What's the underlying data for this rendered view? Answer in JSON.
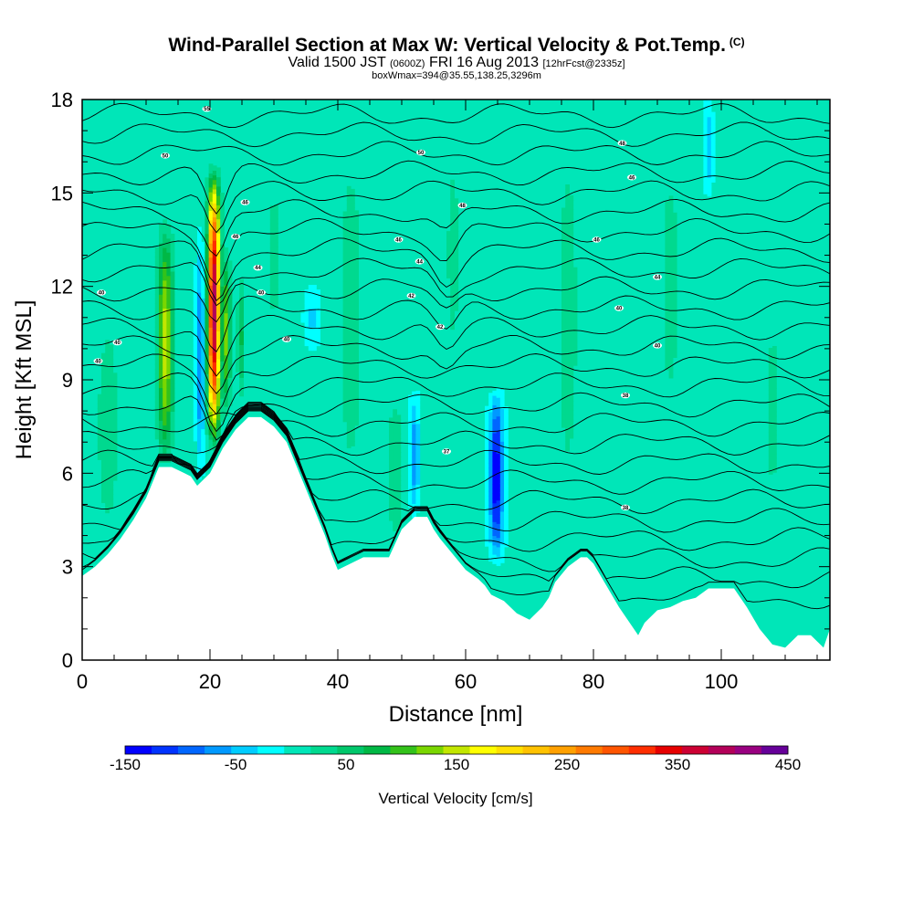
{
  "header": {
    "title": "Wind-Parallel Section at Max W: Vertical Velocity & Pot.Temp.",
    "copyright": "(C)",
    "valid_prefix": "Valid 1500 JST",
    "valid_utc": "(0600Z)",
    "valid_date": "FRI 16 Aug 2013",
    "forecast": "[12hrFcst@2335z]",
    "box_info": "boxWmax=394@35.55,138.25,3296m"
  },
  "chart_data": {
    "type": "heatmap",
    "xlabel": "Distance [nm]",
    "ylabel": "Height [Kft MSL]",
    "xlim": [
      0,
      117
    ],
    "ylim": [
      0,
      18
    ],
    "x_ticks": [
      0,
      20,
      40,
      60,
      80,
      100
    ],
    "y_ticks": [
      0,
      3,
      6,
      9,
      12,
      15,
      18
    ],
    "colorbar": {
      "label": "Vertical Velocity [cm/s]",
      "range": [
        -150,
        450
      ],
      "tick_labels": [
        "-150",
        "-50",
        "50",
        "150",
        "250",
        "350",
        "450"
      ],
      "tick_values": [
        -150,
        -50,
        50,
        150,
        250,
        350,
        450
      ],
      "colors": [
        "#0000ff",
        "#0033ff",
        "#0066ff",
        "#0099ff",
        "#00ccff",
        "#00ffff",
        "#00e6b8",
        "#00d98f",
        "#00c76b",
        "#00b845",
        "#33c21a",
        "#7ad600",
        "#c2e600",
        "#ffff00",
        "#ffe000",
        "#ffc200",
        "#ffa000",
        "#ff7a00",
        "#ff5500",
        "#ff2e00",
        "#e60000",
        "#cc0033",
        "#b30059",
        "#990080",
        "#660099"
      ]
    },
    "terrain_kft": {
      "x": [
        0,
        2,
        4,
        6,
        8,
        10,
        11,
        12,
        14,
        16,
        17,
        18,
        20,
        21,
        22,
        24,
        26,
        27,
        28,
        30,
        32,
        34,
        36,
        38,
        39,
        40,
        42,
        44,
        46,
        48,
        50,
        52,
        54,
        55,
        56,
        58,
        60,
        62,
        63,
        64,
        66,
        68,
        70,
        72,
        73,
        74,
        76,
        78,
        79,
        80,
        82,
        84,
        86,
        87,
        88,
        90,
        92,
        94,
        96,
        98,
        100,
        102,
        104,
        106,
        108,
        110,
        112,
        114,
        116,
        117
      ],
      "y": [
        2.7,
        3.0,
        3.4,
        3.9,
        4.5,
        5.2,
        5.7,
        6.2,
        6.2,
        6.0,
        5.9,
        5.6,
        6.0,
        6.4,
        6.8,
        7.4,
        7.8,
        7.8,
        7.8,
        7.5,
        7.0,
        6.0,
        5.0,
        4.0,
        3.4,
        2.9,
        3.1,
        3.3,
        3.3,
        3.3,
        4.2,
        4.6,
        4.6,
        4.2,
        3.9,
        3.4,
        2.9,
        2.6,
        2.4,
        2.1,
        1.9,
        1.5,
        1.3,
        1.7,
        2.0,
        2.5,
        3.0,
        3.3,
        3.3,
        3.1,
        2.4,
        1.7,
        1.1,
        0.8,
        1.2,
        1.6,
        1.7,
        1.9,
        2.0,
        2.3,
        2.3,
        2.3,
        1.7,
        1.0,
        0.5,
        0.4,
        0.8,
        0.8,
        0.4,
        1.0
      ]
    },
    "updraft_plumes": [
      {
        "x": 13,
        "ybot": 6.6,
        "ytop": 13.8,
        "w": 1.4,
        "peak": 150
      },
      {
        "x": 20.6,
        "ybot": 7.3,
        "ytop": 15.4,
        "w": 1.1,
        "peak": 394
      },
      {
        "x": 22.6,
        "ybot": 8.0,
        "ytop": 13.0,
        "w": 0.7,
        "peak": 120
      },
      {
        "x": 24.8,
        "ybot": 8.5,
        "ytop": 12.2,
        "w": 0.6,
        "peak": 70
      },
      {
        "x": 49,
        "ybot": 3.6,
        "ytop": 8.6,
        "w": 1.6,
        "peak": 35
      }
    ],
    "downdraft_plumes": [
      {
        "x": 18.5,
        "ybot": 6.2,
        "ytop": 13.5,
        "w": 0.7,
        "peak": -80
      },
      {
        "x": 52,
        "ybot": 4.8,
        "ytop": 8.5,
        "w": 0.8,
        "peak": -70
      },
      {
        "x": 64.8,
        "ybot": 3.4,
        "ytop": 8.4,
        "w": 1.2,
        "peak": -150
      },
      {
        "x": 98,
        "ybot": 15,
        "ytop": 18,
        "w": 0.7,
        "peak": -45
      },
      {
        "x": 36,
        "ybot": 10,
        "ytop": 12,
        "w": 1.4,
        "peak": -35
      }
    ],
    "isentrope_labels": [
      {
        "x": 3,
        "y": 11.8,
        "text": "40"
      },
      {
        "x": 5.5,
        "y": 10.2,
        "text": "40"
      },
      {
        "x": 2.5,
        "y": 9.6,
        "text": "40"
      },
      {
        "x": 13,
        "y": 16.2,
        "text": "50"
      },
      {
        "x": 19.5,
        "y": 17.7,
        "text": "55"
      },
      {
        "x": 25.5,
        "y": 14.7,
        "text": "46"
      },
      {
        "x": 24,
        "y": 13.6,
        "text": "46"
      },
      {
        "x": 27.5,
        "y": 12.6,
        "text": "44"
      },
      {
        "x": 28,
        "y": 11.8,
        "text": "40"
      },
      {
        "x": 32,
        "y": 10.3,
        "text": "40"
      },
      {
        "x": 49.5,
        "y": 13.5,
        "text": "46"
      },
      {
        "x": 52.8,
        "y": 12.8,
        "text": "44"
      },
      {
        "x": 51.5,
        "y": 11.7,
        "text": "42"
      },
      {
        "x": 53,
        "y": 16.3,
        "text": "50"
      },
      {
        "x": 59.5,
        "y": 14.6,
        "text": "48"
      },
      {
        "x": 56,
        "y": 10.7,
        "text": "42"
      },
      {
        "x": 57,
        "y": 6.7,
        "text": "37"
      },
      {
        "x": 80.5,
        "y": 13.5,
        "text": "46"
      },
      {
        "x": 84.5,
        "y": 16.6,
        "text": "48"
      },
      {
        "x": 86,
        "y": 15.5,
        "text": "46"
      },
      {
        "x": 84,
        "y": 11.3,
        "text": "40"
      },
      {
        "x": 90,
        "y": 12.3,
        "text": "44"
      },
      {
        "x": 90,
        "y": 10.1,
        "text": "40"
      },
      {
        "x": 85,
        "y": 8.5,
        "text": "38"
      },
      {
        "x": 85,
        "y": 4.9,
        "text": "38"
      }
    ]
  }
}
